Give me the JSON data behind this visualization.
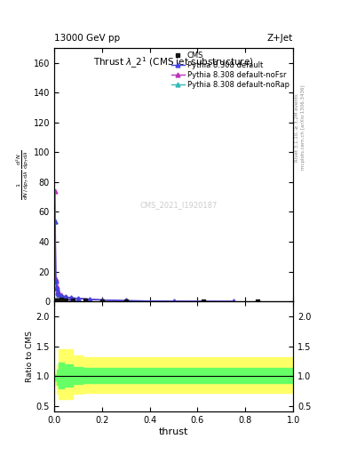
{
  "top_left_label": "13000 GeV pp",
  "top_right_label": "Z+Jet",
  "right_label_top": "Rivet 3.1.10, ≥ 3.2M events",
  "right_label_bottom": "mcplots.cern.ch [arXiv:1306.3436]",
  "watermark": "CMS_2021_I1920187",
  "xlabel": "thrust",
  "ylabel_ratio": "Ratio to CMS",
  "xlim": [
    0,
    1
  ],
  "ylim_main": [
    0,
    170
  ],
  "ylim_ratio": [
    0.4,
    2.25
  ],
  "cms_x": [
    0.002,
    0.005,
    0.0075,
    0.01,
    0.015,
    0.02,
    0.03,
    0.05,
    0.08,
    0.13,
    0.2,
    0.3,
    0.625,
    0.85
  ],
  "cms_y": [
    0.3,
    0.6,
    0.7,
    0.8,
    0.9,
    1.0,
    1.1,
    1.0,
    0.9,
    0.5,
    0.3,
    0.15,
    0.02,
    0.005
  ],
  "pythia_default_x": [
    0.004,
    0.007,
    0.01,
    0.015,
    0.02,
    0.03,
    0.05,
    0.07,
    0.1,
    0.15,
    0.2,
    0.3,
    0.5,
    0.75
  ],
  "pythia_default_y": [
    54,
    14,
    9,
    6,
    5,
    4,
    3,
    2.5,
    2.0,
    1.5,
    1.0,
    0.5,
    0.1,
    0.02
  ],
  "pythia_noFsr_x": [
    0.004,
    0.007,
    0.01,
    0.015,
    0.02,
    0.03,
    0.05,
    0.07,
    0.1,
    0.15,
    0.2,
    0.3,
    0.5,
    0.75
  ],
  "pythia_noFsr_y": [
    74,
    15,
    10,
    7,
    5.5,
    4.2,
    3.2,
    2.5,
    2.0,
    1.5,
    1.0,
    0.5,
    0.1,
    0.02
  ],
  "pythia_noRap_x": [
    0.004,
    0.007,
    0.01,
    0.015,
    0.02,
    0.03,
    0.05,
    0.07,
    0.1,
    0.15,
    0.2,
    0.3,
    0.5,
    0.75
  ],
  "pythia_noRap_y": [
    54,
    14,
    9,
    6,
    5,
    4,
    3,
    2.5,
    2.0,
    1.5,
    1.0,
    0.5,
    0.1,
    0.02
  ],
  "color_default": "#4444dd",
  "color_noFsr": "#bb33bb",
  "color_noRap": "#33bbbb",
  "color_cms": "#111111",
  "ratio_yellow_x": [
    0.0,
    0.01,
    0.02,
    0.04,
    0.08,
    0.12,
    0.2,
    1.01
  ],
  "ratio_yellow_low": [
    0.85,
    0.7,
    0.62,
    0.62,
    0.7,
    0.72,
    0.72,
    0.72
  ],
  "ratio_yellow_high": [
    1.05,
    1.2,
    1.45,
    1.45,
    1.35,
    1.32,
    1.32,
    1.32
  ],
  "ratio_green_x": [
    0.0,
    0.01,
    0.02,
    0.04,
    0.08,
    0.12,
    0.2,
    1.01
  ],
  "ratio_green_low": [
    0.93,
    0.85,
    0.8,
    0.82,
    0.87,
    0.88,
    0.88,
    0.88
  ],
  "ratio_green_high": [
    1.02,
    1.1,
    1.22,
    1.2,
    1.15,
    1.14,
    1.14,
    1.14
  ],
  "yticks_main": [
    0,
    20,
    40,
    60,
    80,
    100,
    120,
    140,
    160
  ],
  "yticks_ratio": [
    0.5,
    1.0,
    1.5,
    2.0
  ],
  "xticks": [
    0.0,
    0.2,
    0.4,
    0.6,
    0.8,
    1.0
  ]
}
